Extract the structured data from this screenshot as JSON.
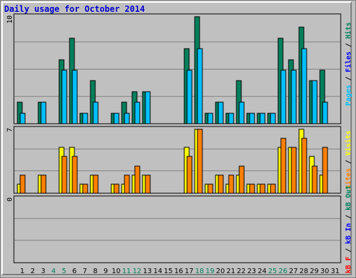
{
  "title": "Daily usage for October 2014",
  "colors": {
    "hits": "#00805c",
    "files": "#00c0ff",
    "pages": "#00c0ff",
    "visits": "#ffff00",
    "sites": "#ff8000",
    "kbytes": "#ff0000",
    "kb_in": "#0000ff",
    "kb_out": "#00805c",
    "weekend": "#00805c",
    "weekday": "#000000",
    "panel": "#c0c0c0",
    "grid": "#808080"
  },
  "right_labels": {
    "top": [
      {
        "text": "Pages",
        "color": "#00c0ff"
      },
      {
        "text": " / ",
        "color": "#000000"
      },
      {
        "text": "Files",
        "color": "#0000ff"
      },
      {
        "text": " / ",
        "color": "#000000"
      },
      {
        "text": "Hits",
        "color": "#00805c"
      }
    ],
    "middle": [
      {
        "text": "Sites",
        "color": "#ff8000"
      },
      {
        "text": " / ",
        "color": "#000000"
      },
      {
        "text": "Visits",
        "color": "#ffff00"
      }
    ],
    "bottom": [
      {
        "text": "kB F",
        "color": "#ff0000"
      },
      {
        "text": " / ",
        "color": "#000000"
      },
      {
        "text": "kB In",
        "color": "#0000ff"
      },
      {
        "text": " / ",
        "color": "#000000"
      },
      {
        "text": "kB Out",
        "color": "#00805c"
      }
    ]
  },
  "chart_data": [
    {
      "type": "bar",
      "name": "hits-files",
      "ymax_label": "10",
      "ylim": [
        0,
        10
      ],
      "categories": [
        "1",
        "2",
        "3",
        "4",
        "5",
        "6",
        "7",
        "8",
        "9",
        "10",
        "11",
        "12",
        "13",
        "14",
        "15",
        "16",
        "17",
        "18",
        "19",
        "20",
        "21",
        "22",
        "23",
        "24",
        "25",
        "26",
        "27",
        "28",
        "29",
        "30",
        "31"
      ],
      "weekend_days": [
        "4",
        "5",
        "11",
        "12",
        "18",
        "19",
        "25",
        "26"
      ],
      "series": [
        {
          "name": "Hits",
          "values": [
            2,
            0,
            2,
            0,
            6,
            8,
            1,
            4,
            0,
            1,
            2,
            3,
            3,
            0,
            0,
            0,
            7,
            10,
            1,
            2,
            1,
            4,
            1,
            1,
            1,
            8,
            6,
            9,
            4,
            5,
            0
          ]
        },
        {
          "name": "Files",
          "values": [
            1,
            0,
            2,
            0,
            5,
            5,
            1,
            2,
            0,
            1,
            1,
            2,
            3,
            0,
            0,
            0,
            5,
            7,
            1,
            2,
            1,
            2,
            1,
            1,
            1,
            5,
            5,
            7,
            4,
            2,
            0
          ]
        }
      ]
    },
    {
      "type": "bar",
      "name": "visits-sites",
      "ymax_label": "7",
      "ylim": [
        0,
        7
      ],
      "categories": [
        "1",
        "2",
        "3",
        "4",
        "5",
        "6",
        "7",
        "8",
        "9",
        "10",
        "11",
        "12",
        "13",
        "14",
        "15",
        "16",
        "17",
        "18",
        "19",
        "20",
        "21",
        "22",
        "23",
        "24",
        "25",
        "26",
        "27",
        "28",
        "29",
        "30",
        "31"
      ],
      "series": [
        {
          "name": "Visits",
          "values": [
            1,
            0,
            2,
            0,
            5,
            5,
            1,
            2,
            0,
            1,
            1,
            2,
            2,
            0,
            0,
            0,
            5,
            7,
            1,
            2,
            1,
            2,
            1,
            1,
            1,
            5,
            5,
            7,
            4,
            2,
            0
          ]
        },
        {
          "name": "Sites",
          "values": [
            2,
            0,
            2,
            0,
            4,
            4,
            1,
            2,
            0,
            1,
            2,
            3,
            2,
            0,
            0,
            0,
            4,
            7,
            1,
            2,
            2,
            3,
            1,
            1,
            1,
            6,
            5,
            6,
            3,
            5,
            0
          ]
        }
      ]
    },
    {
      "type": "bar",
      "name": "kbytes",
      "ymax_label": "0",
      "ylim": [
        0,
        1
      ],
      "categories": [
        "1",
        "2",
        "3",
        "4",
        "5",
        "6",
        "7",
        "8",
        "9",
        "10",
        "11",
        "12",
        "13",
        "14",
        "15",
        "16",
        "17",
        "18",
        "19",
        "20",
        "21",
        "22",
        "23",
        "24",
        "25",
        "26",
        "27",
        "28",
        "29",
        "30",
        "31"
      ],
      "series": [
        {
          "name": "kB F",
          "values": [
            0,
            0,
            0,
            0,
            0,
            0,
            0,
            0,
            0,
            0,
            0,
            0,
            0,
            0,
            0,
            0,
            0,
            0,
            0,
            0,
            0,
            0,
            0,
            0,
            0,
            0,
            0,
            0,
            0,
            0,
            0
          ]
        },
        {
          "name": "kB In",
          "values": [
            0,
            0,
            0,
            0,
            0,
            0,
            0,
            0,
            0,
            0,
            0,
            0,
            0,
            0,
            0,
            0,
            0,
            0,
            0,
            0,
            0,
            0,
            0,
            0,
            0,
            0,
            0,
            0,
            0,
            0,
            0
          ]
        },
        {
          "name": "kB Out",
          "values": [
            0,
            0,
            0,
            0,
            0,
            0,
            0,
            0,
            0,
            0,
            0,
            0,
            0,
            0,
            0,
            0,
            0,
            0,
            0,
            0,
            0,
            0,
            0,
            0,
            0,
            0,
            0,
            0,
            0,
            0,
            0
          ]
        }
      ]
    }
  ]
}
